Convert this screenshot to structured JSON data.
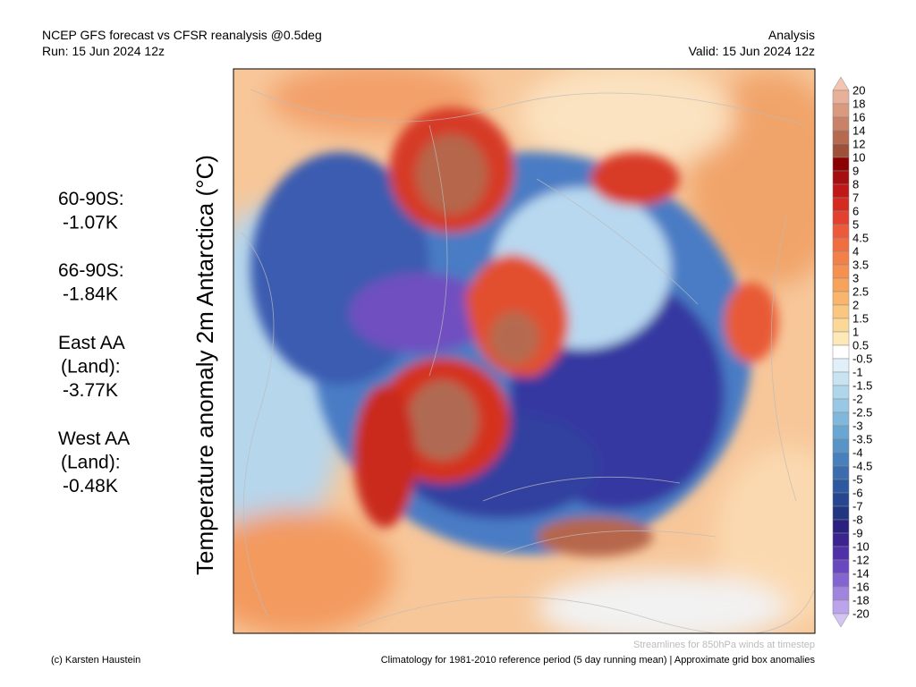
{
  "header": {
    "title": "NCEP GFS forecast vs CFSR reanalysis @0.5deg",
    "run": "Run: 15 Jun 2024 12z",
    "kind": "Analysis",
    "valid": "Valid: 15 Jun 2024 12z"
  },
  "axis_label": "Temperature anomaly 2m Antarctica (°C)",
  "stats": [
    [
      "60-90S:",
      "-1.07K"
    ],
    [
      "66-90S:",
      "-1.84K"
    ],
    [
      "East AA",
      "(Land):",
      "-3.77K"
    ],
    [
      "West AA",
      "(Land):",
      "-0.48K"
    ]
  ],
  "colorbar": {
    "labels": [
      "20",
      "18",
      "16",
      "14",
      "12",
      "10",
      "9",
      "8",
      "7",
      "6",
      "5",
      "4.5",
      "4",
      "3.5",
      "3",
      "2.5",
      "2",
      "1.5",
      "1",
      "0.5",
      "-0.5",
      "-1",
      "-1.5",
      "-2",
      "-2.5",
      "-3",
      "-3.5",
      "-4",
      "-4.5",
      "-5",
      "-6",
      "-7",
      "-8",
      "-9",
      "-10",
      "-12",
      "-14",
      "-16",
      "-18",
      "-20"
    ],
    "colors": [
      "#f4c4b0",
      "#e8b098",
      "#d99a80",
      "#c98268",
      "#b56a50",
      "#9e5038",
      "#8b0000",
      "#a50f0f",
      "#c01818",
      "#d42a20",
      "#e34030",
      "#ec5a3a",
      "#f06e40",
      "#f38048",
      "#f59050",
      "#f7a35c",
      "#f9b56c",
      "#fbc780",
      "#fcd898",
      "#fde8b8",
      "#ffffff",
      "#e0f0f8",
      "#c8e4f2",
      "#b0d6ec",
      "#98c8e4",
      "#80b8dc",
      "#6aa6d2",
      "#5894c8",
      "#4880bc",
      "#3a6cae",
      "#2e58a0",
      "#264692",
      "#203680",
      "#2a2080",
      "#3c2490",
      "#5030a8",
      "#6a48c0",
      "#8464d0",
      "#a084de",
      "#bca4ea",
      "#d4c4f4"
    ]
  },
  "footer": {
    "streamlines": "Streamlines for 850hPa winds at timestep",
    "credit": "(c) Karsten Haustein",
    "climatology": "Climatology for 1981-2010 reference period (5 day running mean) | Approximate grid box anomalies"
  }
}
